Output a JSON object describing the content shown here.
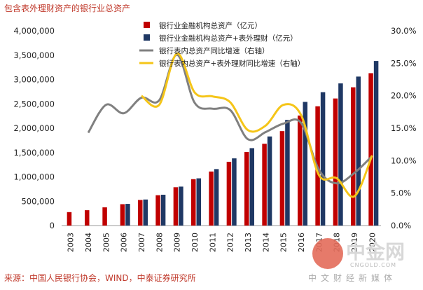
{
  "title": "包含表外理财资产的银行业总资产",
  "source": "来源：中国人民银行协会，WIND，中泰证券研究所",
  "watermark": {
    "name": "中金网",
    "domain": "CNGOLD.COM",
    "subtitle": "中文财经新媒体"
  },
  "colors": {
    "series_total": "#c00000",
    "series_total_plus": "#1f3864",
    "growth_total": "#808080",
    "growth_plus": "#f5c518",
    "title_text": "#c0392b"
  },
  "chart_data": {
    "type": "bar+line",
    "categories": [
      "2003",
      "2004",
      "2005",
      "2006",
      "2007",
      "2008",
      "2009",
      "2010",
      "2011",
      "2012",
      "2013",
      "2014",
      "2015",
      "2016",
      "2017",
      "2018",
      "2019",
      "2020"
    ],
    "y_left": {
      "lim": [
        0,
        4000000
      ],
      "ticks": [
        0,
        500000,
        1000000,
        1500000,
        2000000,
        2500000,
        3000000,
        3500000,
        4000000
      ],
      "tick_labels": [
        "0",
        "500,000",
        "1,000,000",
        "1,500,000",
        "2,000,000",
        "2,500,000",
        "3,000,000",
        "3,500,000",
        "4,000,000"
      ]
    },
    "y_right": {
      "lim": [
        0,
        30
      ],
      "ticks": [
        0,
        5,
        10,
        15,
        20,
        25,
        30
      ],
      "tick_labels": [
        "0.0%",
        "5.0%",
        "10.0%",
        "15.0%",
        "20.0%",
        "25.0%",
        "30.0%"
      ]
    },
    "legend_position": "top-center",
    "series": [
      {
        "name": "银行业金融机构总资产（亿元）",
        "type": "bar",
        "axis": "left",
        "values": [
          276000,
          315000,
          374000,
          439000,
          525000,
          623000,
          787000,
          953000,
          1110000,
          1310000,
          1510000,
          1680000,
          1940000,
          2260000,
          2450000,
          2610000,
          2840000,
          3130000
        ]
      },
      {
        "name": "银行业金融机构总资产+表外理财（亿元）",
        "type": "bar",
        "axis": "left",
        "values": [
          null,
          null,
          null,
          445000,
          535000,
          633000,
          800000,
          970000,
          1160000,
          1380000,
          1590000,
          1830000,
          2170000,
          2540000,
          2740000,
          2920000,
          3060000,
          3380000
        ]
      },
      {
        "name": "银行表内总资产同比增速（右轴）",
        "type": "line",
        "axis": "right",
        "values": [
          null,
          14.3,
          18.6,
          17.3,
          19.7,
          19.3,
          26.3,
          18.9,
          18.0,
          17.8,
          13.3,
          14.4,
          15.7,
          15.8,
          8.6,
          6.5,
          8.1,
          10.7
        ]
      },
      {
        "name": "银行表内总资产+表外理财同比增速（右轴）",
        "type": "line",
        "axis": "right",
        "values": [
          null,
          null,
          null,
          null,
          20.0,
          18.6,
          26.5,
          20.5,
          19.9,
          19.0,
          14.7,
          15.4,
          18.6,
          17.0,
          7.8,
          7.3,
          4.5,
          10.8
        ]
      }
    ]
  }
}
